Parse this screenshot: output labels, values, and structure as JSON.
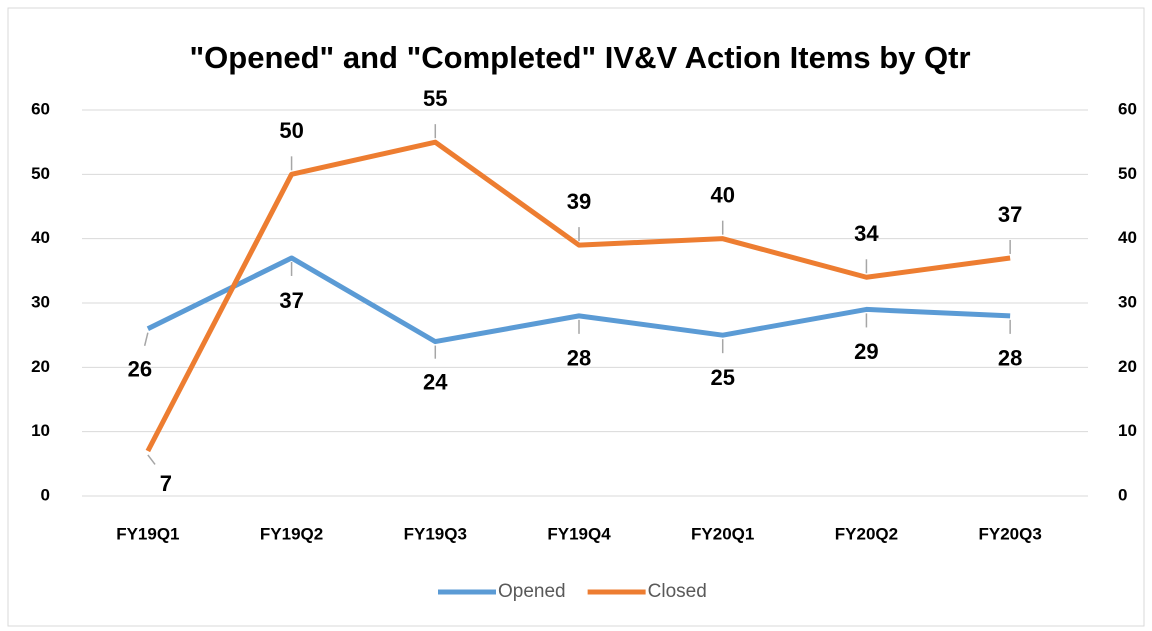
{
  "chart_data": {
    "type": "line",
    "title": "\"Opened\" and \"Completed\" IV&V Action Items by Qtr",
    "categories": [
      "FY19Q1",
      "FY19Q2",
      "FY19Q3",
      "FY19Q4",
      "FY20Q1",
      "FY20Q2",
      "FY20Q3"
    ],
    "series": [
      {
        "name": "Opened",
        "color": "#5b9bd5",
        "values": [
          26,
          37,
          24,
          28,
          25,
          29,
          28
        ]
      },
      {
        "name": "Closed",
        "color": "#ed7d31",
        "values": [
          7,
          50,
          55,
          39,
          40,
          34,
          37
        ]
      }
    ],
    "ylim": [
      0,
      60
    ],
    "yticks": [
      0,
      10,
      20,
      30,
      40,
      50,
      60
    ],
    "y2lim": [
      0,
      60
    ],
    "y2ticks": [
      0,
      10,
      20,
      30,
      40,
      50,
      60
    ],
    "grid": true,
    "legend": "bottom"
  }
}
